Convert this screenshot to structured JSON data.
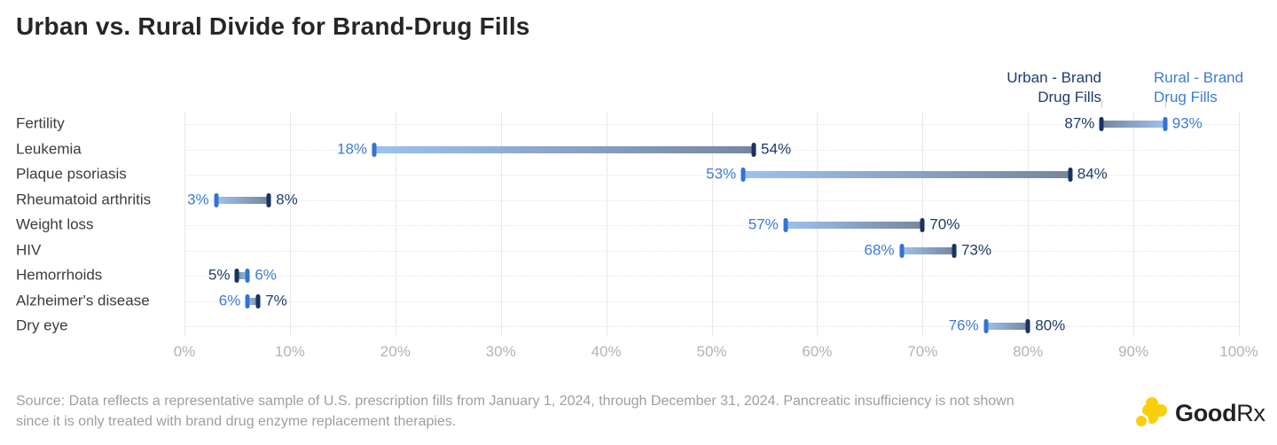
{
  "title": "Urban vs. Rural Divide for Brand-Drug Fills",
  "legend": {
    "urban": {
      "line1": "Urban - Brand",
      "line2": "Drug Fills"
    },
    "rural": {
      "line1": "Rural - Brand",
      "line2": "Drug Fills"
    }
  },
  "chart_data": {
    "type": "bar",
    "subtype": "dumbbell-range",
    "orientation": "horizontal",
    "title": "Urban vs. Rural Divide for Brand-Drug Fills",
    "categories": [
      "Fertility",
      "Leukemia",
      "Plaque psoriasis",
      "Rheumatoid arthritis",
      "Weight loss",
      "HIV",
      "Hemorrhoids",
      "Alzheimer's disease",
      "Dry eye"
    ],
    "series": [
      {
        "name": "Urban - Brand Drug Fills",
        "values": [
          87,
          54,
          84,
          8,
          70,
          73,
          5,
          7,
          80
        ]
      },
      {
        "name": "Rural - Brand Drug Fills",
        "values": [
          93,
          18,
          53,
          3,
          57,
          68,
          6,
          6,
          76
        ]
      }
    ],
    "value_suffix": "%",
    "xlabel": "",
    "ylabel": "",
    "xlim": [
      0,
      100
    ],
    "x_ticks": [
      0,
      10,
      20,
      30,
      40,
      50,
      60,
      70,
      80,
      90,
      100
    ],
    "grid": true,
    "legend_position": "top-right"
  },
  "colors": {
    "urban_text": "#1d3c6b",
    "rural_text": "#3b7bd8",
    "urban_cap": "#17335e",
    "rural_cap": "#3273d3",
    "bar_urban_end": "#75879e",
    "bar_rural_end": "#9cc1ee",
    "grid_line": "#e7e7e7",
    "row_dotted_line": "#e4e4e4",
    "axis_text": "#b3b3b3",
    "title_text": "#262626",
    "category_text": "#3c3c3c",
    "source_text": "#9e9e9e",
    "brand_yellow": "#fbce0d",
    "brand_text": "#222222"
  },
  "source_note": "Source: Data reflects a representative sample of U.S. prescription fills from January 1, 2024, through December 31, 2024. Pancreatic insufficiency is not shown since it is only treated with brand drug enzyme replacement therapies.",
  "logo": {
    "bold": "Good",
    "regular": "Rx"
  }
}
